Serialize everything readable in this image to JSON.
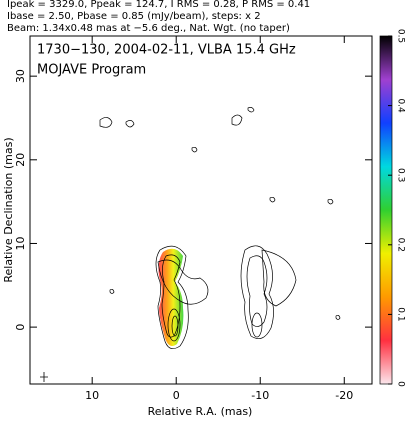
{
  "header": [
    "Ipeak = 3329.0, Ppeak = 124.7, I RMS = 0.28, P RMS = 0.41",
    "Ibase = 2.50, Pbase = 0.85 (mJy/beam), steps: x 2",
    "Beam: 1.34x0.48 mas at −5.6 deg., Nat. Wgt. (no taper)"
  ],
  "chart_data": {
    "type": "contour",
    "title": "1730−130, 2004-02-11, VLBA 15.4 GHz",
    "subtitle": "MOJAVE Program",
    "x_label": "Relative R.A. (mas)",
    "y_label": "Relative Declination (mas)",
    "xlim": [
      17.4,
      -23.3
    ],
    "xticks": [
      10,
      0,
      -10,
      -20
    ],
    "ylim": [
      -6.8,
      34.8
    ],
    "yticks": [
      0,
      10,
      20,
      30
    ],
    "colorbar": {
      "lim": [
        0,
        0.5
      ],
      "ticks": [
        0,
        0.1,
        0.2,
        0.3,
        0.4,
        0.5
      ],
      "colormap": [
        "#fbe6ec",
        "#ff3040",
        "#ff9a00",
        "#f0f000",
        "#30d030",
        "#00d8e0",
        "#1040ff",
        "#a040d0",
        "#000000"
      ]
    }
  }
}
